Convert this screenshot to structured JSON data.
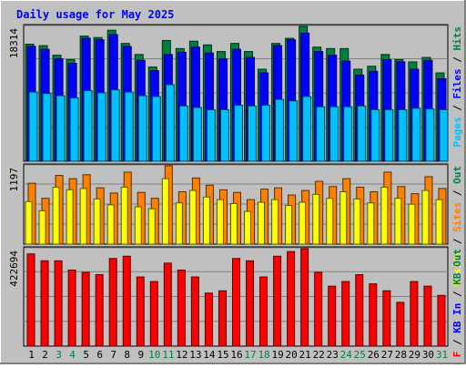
{
  "chart_data": {
    "type": "bar",
    "title": "Daily usage for May 2025",
    "colors": {
      "background": "#c0c0c0",
      "title": "#0000ff",
      "hits": "#008040",
      "files": "#0000ff",
      "pages": "#00c0ff",
      "visits": "#ffff00",
      "sites": "#ff8000",
      "kb_in": "#ff0000",
      "weekend_label": "#008040"
    },
    "categories": [
      "1",
      "2",
      "3",
      "4",
      "5",
      "6",
      "7",
      "8",
      "9",
      "10",
      "11",
      "12",
      "13",
      "14",
      "15",
      "16",
      "17",
      "18",
      "19",
      "20",
      "21",
      "22",
      "23",
      "24",
      "25",
      "26",
      "27",
      "28",
      "29",
      "30",
      "31"
    ],
    "weekend_days": [
      "3",
      "4",
      "10",
      "11",
      "17",
      "18",
      "24",
      "25",
      "31"
    ],
    "panels": [
      {
        "id": "top",
        "max_label": "18314",
        "ymax": 18314,
        "legend": [
          "Pages",
          "Files",
          "Hits"
        ],
        "series": [
          {
            "name": "Hits",
            "values": [
              15900,
              15700,
              14400,
              13800,
              17000,
              16800,
              17800,
              16000,
              14500,
              12800,
              16400,
              15300,
              16300,
              15800,
              14900,
              16000,
              14900,
              12500,
              16000,
              16700,
              18314,
              15500,
              15300,
              15300,
              12500,
              12900,
              14500,
              13800,
              13500,
              14100,
              12000
            ]
          },
          {
            "name": "Files",
            "values": [
              15600,
              15200,
              13900,
              13300,
              16700,
              16500,
              17200,
              15600,
              13700,
              12300,
              14500,
              14800,
              15500,
              14700,
              13900,
              15200,
              14100,
              12000,
              15700,
              16500,
              17400,
              14900,
              14400,
              13600,
              11700,
              12200,
              13800,
              13500,
              12500,
              13700,
              11200
            ]
          },
          {
            "name": "Pages",
            "values": [
              9400,
              9200,
              8900,
              8600,
              9600,
              9300,
              9700,
              9400,
              8900,
              8800,
              10400,
              7500,
              7300,
              7000,
              7000,
              7600,
              7500,
              7600,
              8400,
              8200,
              8800,
              7400,
              7400,
              7400,
              7500,
              7000,
              7000,
              7000,
              7200,
              7100,
              7000
            ]
          }
        ]
      },
      {
        "id": "middle",
        "max_label": "1197",
        "ymax": 1197,
        "legend": [
          "Visits",
          "Sites",
          "Out"
        ],
        "series": [
          {
            "name": "Sites",
            "values": [
              930,
              700,
              1050,
              1000,
              1060,
              860,
              780,
              1100,
              790,
              700,
              1197,
              800,
              1010,
              900,
              830,
              790,
              680,
              840,
              860,
              750,
              820,
              960,
              880,
              1000,
              870,
              800,
              1100,
              880,
              770,
              1030,
              850
            ]
          },
          {
            "name": "Visits",
            "values": [
              650,
              510,
              870,
              830,
              850,
              690,
              600,
              870,
              570,
              540,
              1000,
              630,
              820,
              720,
              680,
              620,
              500,
              640,
              680,
              590,
              640,
              760,
              700,
              800,
              690,
              630,
              870,
              700,
              610,
              820,
              680
            ]
          }
        ]
      },
      {
        "id": "bottom",
        "max_label": "422694",
        "ymax": 422694,
        "legend": [
          "KB F",
          "KB In",
          "KB Out"
        ],
        "series": [
          {
            "name": "KB In",
            "values": [
              400000,
              370000,
              370000,
              330000,
              320000,
              310000,
              380000,
              390000,
              300000,
              280000,
              360000,
              330000,
              300000,
              230000,
              240000,
              380000,
              370000,
              300000,
              390000,
              410000,
              422694,
              320000,
              260000,
              280000,
              310000,
              270000,
              240000,
              190000,
              280000,
              260000,
              220000
            ]
          }
        ]
      }
    ]
  }
}
